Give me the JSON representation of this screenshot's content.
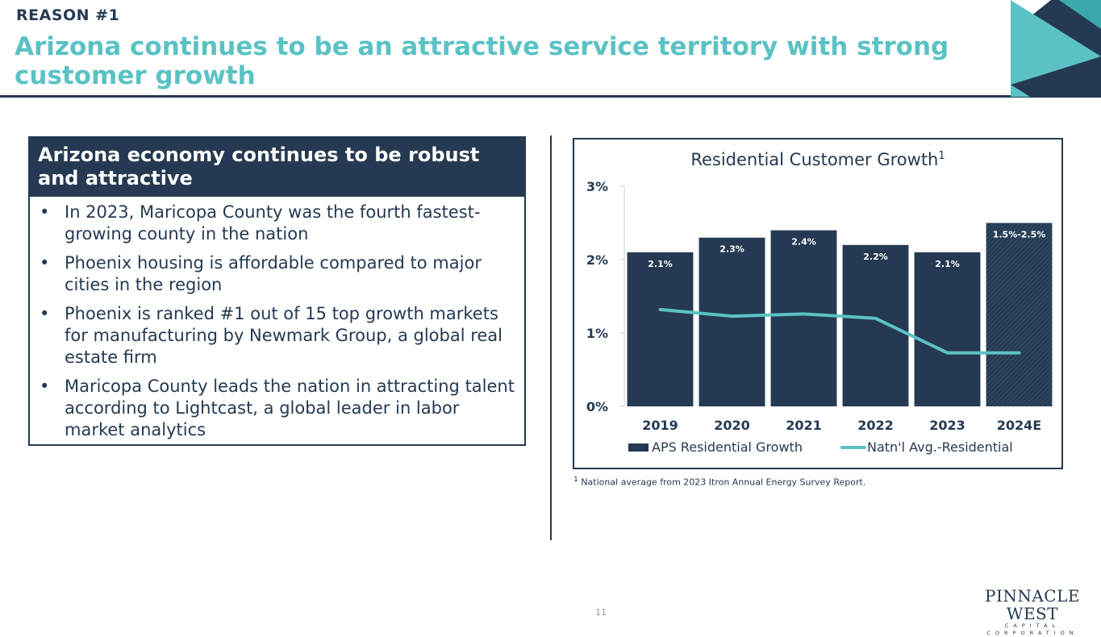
{
  "header": {
    "reason": "REASON #1",
    "title": "Arizona continues to be an attractive service territory with strong customer growth"
  },
  "left_panel": {
    "heading": "Arizona economy continues to be robust and attractive",
    "bullets": [
      "In 2023, Maricopa County was the fourth fastest-growing county in the nation",
      "Phoenix housing is affordable compared to major cities in the region",
      "Phoenix is ranked #1 out of 15 top growth markets for manufacturing by Newmark Group, a global real estate firm",
      "Maricopa County leads the nation in attracting talent according to Lightcast, a global leader in labor market analytics"
    ]
  },
  "chart_data": {
    "type": "bar",
    "title": "Residential Customer Growth",
    "title_superscript": "1",
    "categories": [
      "2019",
      "2020",
      "2021",
      "2022",
      "2023",
      "2024E"
    ],
    "ylim": [
      0,
      3
    ],
    "yticks": [
      "0%",
      "1%",
      "2%",
      "3%"
    ],
    "ytick_values": [
      0,
      1,
      2,
      3
    ],
    "series": [
      {
        "name": "APS Residential Growth",
        "type": "bar",
        "values": [
          2.1,
          2.3,
          2.4,
          2.2,
          2.1,
          2.5
        ],
        "labels": [
          "2.1%",
          "2.3%",
          "2.4%",
          "2.2%",
          "2.1%",
          "1.5%-2.5%"
        ],
        "color": "#253a52",
        "projected_index": 5
      },
      {
        "name": "Natn'l Avg.-Residential",
        "type": "line",
        "values": [
          1.32,
          1.23,
          1.26,
          1.2,
          0.73,
          0.73
        ],
        "color": "#5bc2c4"
      }
    ],
    "legend_position": "bottom",
    "grid": false
  },
  "footnote": {
    "marker": "1",
    "text": "National average from 2023 Itron Annual Energy Survey Report."
  },
  "page_number": "11",
  "logo": {
    "name": "PINNACLE WEST",
    "subtitle": "CAPITAL CORPORATION"
  },
  "colors": {
    "navy": "#253a52",
    "teal": "#5bc2c4",
    "teal_dark": "#3aa8ad"
  }
}
